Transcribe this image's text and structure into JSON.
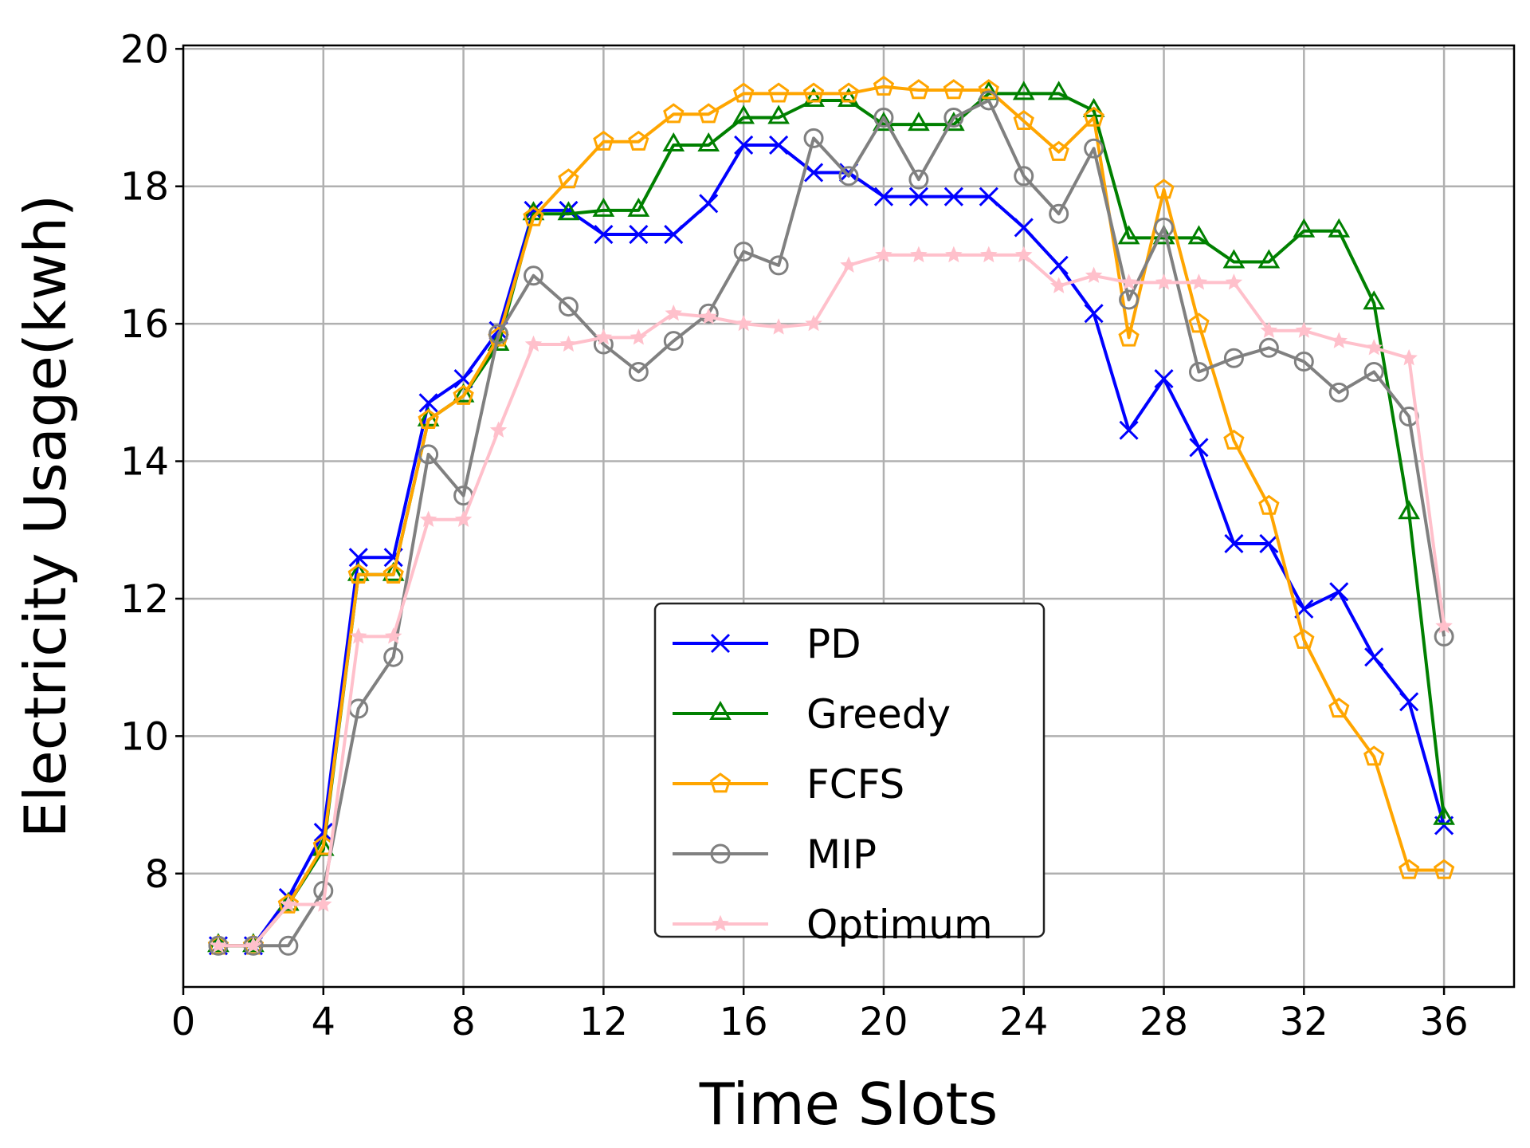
{
  "chart_data": {
    "type": "line",
    "xlabel": "Time Slots",
    "ylabel": "Electricity Usage(kwh)",
    "xlim": [
      0,
      38
    ],
    "ylim": [
      6.35,
      20.05
    ],
    "xticks": [
      0,
      4,
      8,
      12,
      16,
      20,
      24,
      28,
      32,
      36
    ],
    "yticks": [
      8,
      10,
      12,
      14,
      16,
      18,
      20
    ],
    "grid": true,
    "legend_position": "lower center",
    "x": [
      1,
      2,
      3,
      4,
      5,
      6,
      7,
      8,
      9,
      10,
      11,
      12,
      13,
      14,
      15,
      16,
      17,
      18,
      19,
      20,
      21,
      22,
      23,
      24,
      25,
      26,
      27,
      28,
      29,
      30,
      31,
      32,
      33,
      34,
      35,
      36
    ],
    "series": [
      {
        "name": "PD",
        "color": "#0000ff",
        "marker": "x",
        "values": [
          6.95,
          6.95,
          7.65,
          8.6,
          12.6,
          12.6,
          14.85,
          15.2,
          15.9,
          17.65,
          17.65,
          17.3,
          17.3,
          17.3,
          17.75,
          18.6,
          18.6,
          18.2,
          18.2,
          17.85,
          17.85,
          17.85,
          17.85,
          17.4,
          16.85,
          16.15,
          14.45,
          15.2,
          14.2,
          12.8,
          12.8,
          11.85,
          12.1,
          11.15,
          10.5,
          8.7
        ]
      },
      {
        "name": "Greedy",
        "color": "#008000",
        "marker": "triangle",
        "values": [
          6.95,
          6.95,
          7.55,
          8.35,
          12.35,
          12.35,
          14.6,
          14.95,
          15.7,
          17.6,
          17.6,
          17.65,
          17.65,
          18.6,
          18.6,
          19.0,
          19.0,
          19.25,
          19.25,
          18.9,
          18.9,
          18.9,
          19.35,
          19.35,
          19.35,
          19.1,
          17.25,
          17.25,
          17.25,
          16.9,
          16.9,
          17.35,
          17.35,
          16.3,
          13.25,
          8.8
        ]
      },
      {
        "name": "FCFS",
        "color": "#ffa500",
        "marker": "pentagon",
        "values": [
          6.95,
          6.95,
          7.55,
          8.4,
          12.35,
          12.35,
          14.6,
          14.95,
          15.8,
          17.55,
          18.1,
          18.65,
          18.65,
          19.05,
          19.05,
          19.35,
          19.35,
          19.35,
          19.35,
          19.45,
          19.4,
          19.4,
          19.4,
          18.95,
          18.5,
          19.0,
          15.8,
          17.95,
          16.0,
          14.3,
          13.35,
          11.4,
          10.4,
          9.7,
          8.05,
          8.05
        ]
      },
      {
        "name": "MIP",
        "color": "#808080",
        "marker": "circle",
        "values": [
          6.95,
          6.95,
          6.95,
          7.75,
          10.4,
          11.15,
          14.1,
          13.5,
          15.85,
          16.7,
          16.25,
          15.7,
          15.3,
          15.75,
          16.15,
          17.05,
          16.85,
          18.7,
          18.15,
          19.0,
          18.1,
          19.0,
          19.25,
          18.15,
          17.6,
          18.55,
          16.35,
          17.4,
          15.3,
          15.5,
          15.65,
          15.45,
          15.0,
          15.3,
          14.65,
          11.45
        ]
      },
      {
        "name": "Optimum",
        "color": "#ffc0cb",
        "marker": "star",
        "values": [
          6.95,
          6.95,
          7.55,
          7.55,
          11.45,
          11.45,
          13.15,
          13.15,
          14.45,
          15.7,
          15.7,
          15.8,
          15.8,
          16.15,
          16.1,
          16.0,
          15.95,
          16.0,
          16.85,
          17.0,
          17.0,
          17.0,
          17.0,
          17.0,
          16.55,
          16.7,
          16.6,
          16.6,
          16.6,
          16.6,
          15.9,
          15.9,
          15.75,
          15.65,
          15.5,
          11.6
        ]
      }
    ]
  }
}
